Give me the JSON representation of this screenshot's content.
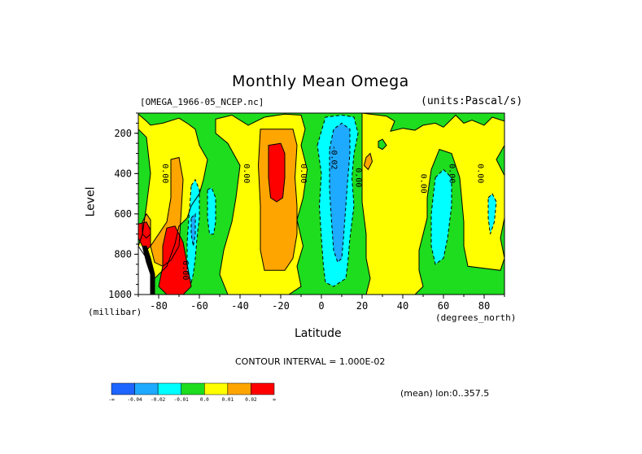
{
  "chart_data": {
    "type": "heatmap",
    "title": "Monthly Mean Omega",
    "file_label": "[OMEGA_1966-05_NCEP.nc]",
    "units_label": "(units:Pascal/s)",
    "xlabel": "Latitude",
    "xunit": "(degrees_north)",
    "ylabel": "Level",
    "yunit": "(millibar)",
    "xlim": [
      -90,
      90
    ],
    "ylim": [
      1000,
      100
    ],
    "x_ticks": [
      "-80",
      "-60",
      "-40",
      "-20",
      "0",
      "20",
      "40",
      "60",
      "80"
    ],
    "x_tick_values": [
      -80,
      -60,
      -40,
      -20,
      0,
      20,
      40,
      60,
      80
    ],
    "y_ticks": [
      "200",
      "400",
      "600",
      "800",
      "1000"
    ],
    "y_tick_values": [
      200,
      400,
      600,
      800,
      1000
    ],
    "contour_interval_label": "CONTOUR INTERVAL = 1.000E-02",
    "mean_label": "(mean) lon:0..357.5",
    "contour_labels": [
      {
        "text": "0.00",
        "lat": -78,
        "lev": 400
      },
      {
        "text": "0.00",
        "lat": -38,
        "lev": 400
      },
      {
        "text": "0.00",
        "lat": -10,
        "lev": 400
      },
      {
        "text": "-0.02",
        "lat": 5,
        "lev": 320
      },
      {
        "text": "0.00",
        "lat": 17,
        "lev": 420
      },
      {
        "text": "0.00",
        "lat": 49,
        "lev": 450
      },
      {
        "text": "0.00",
        "lat": 63,
        "lev": 400
      },
      {
        "text": "0.00",
        "lat": 77,
        "lev": 400
      },
      {
        "text": "0.00",
        "lat": -68,
        "lev": 880
      }
    ],
    "colorbar": {
      "levels": [
        "-∞",
        "-0.04",
        "-0.02",
        "-0.01",
        "0.0",
        "0.01",
        "0.02",
        "∞"
      ],
      "colors": [
        "#1e64ff",
        "#1eaaff",
        "#00ffff",
        "#1edc1e",
        "#ffff00",
        "#ffa500",
        "#ff0000"
      ]
    },
    "regions": [
      {
        "color": "#1edc1e",
        "points": [
          [
            -90,
            100
          ],
          [
            90,
            100
          ],
          [
            90,
            1000
          ],
          [
            -90,
            1000
          ]
        ]
      },
      {
        "color": "#ffff00",
        "points": [
          [
            -90,
            105
          ],
          [
            -86,
            140
          ],
          [
            -84,
            160
          ],
          [
            -78,
            150
          ],
          [
            -70,
            125
          ],
          [
            -66,
            150
          ],
          [
            -62,
            180
          ],
          [
            -60,
            260
          ],
          [
            -56,
            330
          ],
          [
            -58,
            430
          ],
          [
            -60,
            500
          ],
          [
            -64,
            560
          ],
          [
            -66,
            620
          ],
          [
            -70,
            660
          ],
          [
            -72,
            750
          ],
          [
            -76,
            860
          ],
          [
            -82,
            920
          ],
          [
            -86,
            820
          ],
          [
            -90,
            760
          ],
          [
            -88,
            700
          ],
          [
            -86,
            560
          ],
          [
            -84,
            400
          ],
          [
            -86,
            220
          ],
          [
            -90,
            180
          ]
        ]
      },
      {
        "color": "#ffff00",
        "points": [
          [
            -52,
            130
          ],
          [
            -44,
            110
          ],
          [
            -36,
            160
          ],
          [
            -28,
            120
          ],
          [
            -18,
            105
          ],
          [
            -10,
            110
          ],
          [
            -8,
            180
          ],
          [
            -10,
            260
          ],
          [
            -7,
            380
          ],
          [
            -9,
            520
          ],
          [
            -12,
            630
          ],
          [
            -9,
            760
          ],
          [
            -12,
            860
          ],
          [
            -10,
            960
          ],
          [
            -16,
            1000
          ],
          [
            -46,
            1000
          ],
          [
            -50,
            900
          ],
          [
            -48,
            780
          ],
          [
            -44,
            640
          ],
          [
            -42,
            520
          ],
          [
            -40,
            360
          ],
          [
            -46,
            250
          ],
          [
            -52,
            200
          ]
        ]
      },
      {
        "color": "#ffff00",
        "points": [
          [
            20,
            100
          ],
          [
            32,
            115
          ],
          [
            36,
            140
          ],
          [
            34,
            190
          ],
          [
            40,
            175
          ],
          [
            46,
            185
          ],
          [
            50,
            160
          ],
          [
            56,
            150
          ],
          [
            60,
            170
          ],
          [
            66,
            110
          ],
          [
            70,
            150
          ],
          [
            74,
            135
          ],
          [
            80,
            160
          ],
          [
            84,
            120
          ],
          [
            90,
            140
          ],
          [
            90,
            260
          ],
          [
            86,
            330
          ],
          [
            90,
            410
          ],
          [
            90,
            620
          ],
          [
            88,
            720
          ],
          [
            90,
            820
          ],
          [
            88,
            880
          ],
          [
            72,
            860
          ],
          [
            70,
            760
          ],
          [
            70,
            640
          ],
          [
            68,
            420
          ],
          [
            64,
            300
          ],
          [
            58,
            280
          ],
          [
            54,
            380
          ],
          [
            52,
            520
          ],
          [
            52,
            620
          ],
          [
            50,
            700
          ],
          [
            48,
            780
          ],
          [
            48,
            880
          ],
          [
            50,
            960
          ],
          [
            46,
            1000
          ],
          [
            22,
            1000
          ],
          [
            24,
            920
          ],
          [
            22,
            820
          ],
          [
            22,
            700
          ],
          [
            20,
            540
          ],
          [
            20,
            380
          ],
          [
            20,
            220
          ]
        ]
      },
      {
        "color": "#ffa500",
        "points": [
          [
            -74,
            330
          ],
          [
            -70,
            320
          ],
          [
            -68,
            430
          ],
          [
            -69,
            600
          ],
          [
            -70,
            760
          ],
          [
            -74,
            830
          ],
          [
            -78,
            860
          ],
          [
            -82,
            840
          ],
          [
            -84,
            760
          ],
          [
            -80,
            700
          ],
          [
            -76,
            640
          ],
          [
            -74,
            520
          ]
        ]
      },
      {
        "color": "#ffa500",
        "points": [
          [
            -30,
            180
          ],
          [
            -14,
            180
          ],
          [
            -12,
            260
          ],
          [
            -13,
            420
          ],
          [
            -12,
            560
          ],
          [
            -12,
            700
          ],
          [
            -14,
            820
          ],
          [
            -18,
            880
          ],
          [
            -28,
            880
          ],
          [
            -30,
            780
          ],
          [
            -30,
            560
          ],
          [
            -31,
            360
          ]
        ]
      },
      {
        "color": "#ffa500",
        "points": [
          [
            22,
            320
          ],
          [
            24,
            300
          ],
          [
            25,
            340
          ],
          [
            23,
            380
          ],
          [
            21,
            360
          ]
        ]
      },
      {
        "color": "#ffa500",
        "points": [
          [
            -88,
            640
          ],
          [
            -86,
            600
          ],
          [
            -84,
            630
          ],
          [
            -84,
            700
          ],
          [
            -86,
            720
          ],
          [
            -88,
            700
          ]
        ]
      },
      {
        "color": "#ff0000",
        "points": [
          [
            -26,
            260
          ],
          [
            -20,
            250
          ],
          [
            -18,
            300
          ],
          [
            -18,
            420
          ],
          [
            -19,
            520
          ],
          [
            -22,
            540
          ],
          [
            -25,
            520
          ],
          [
            -26,
            420
          ]
        ]
      },
      {
        "color": "#ff0000",
        "points": [
          [
            -76,
            670
          ],
          [
            -72,
            660
          ],
          [
            -68,
            740
          ],
          [
            -66,
            850
          ],
          [
            -64,
            960
          ],
          [
            -68,
            1000
          ],
          [
            -76,
            1000
          ],
          [
            -80,
            960
          ],
          [
            -78,
            860
          ],
          [
            -78,
            760
          ]
        ]
      },
      {
        "color": "#ff0000",
        "points": [
          [
            -90,
            650
          ],
          [
            -86,
            640
          ],
          [
            -84,
            680
          ],
          [
            -84,
            760
          ],
          [
            -86,
            780
          ],
          [
            -88,
            760
          ],
          [
            -90,
            720
          ]
        ]
      },
      {
        "color": "#00ffff",
        "points": [
          [
            -64,
            460
          ],
          [
            -62,
            430
          ],
          [
            -60,
            480
          ],
          [
            -60,
            620
          ],
          [
            -61,
            700
          ],
          [
            -62,
            820
          ],
          [
            -63,
            900
          ],
          [
            -64,
            940
          ],
          [
            -66,
            880
          ],
          [
            -66,
            740
          ],
          [
            -65,
            600
          ]
        ]
      },
      {
        "color": "#00ffff",
        "points": [
          [
            -56,
            480
          ],
          [
            -54,
            470
          ],
          [
            -52,
            520
          ],
          [
            -52,
            640
          ],
          [
            -53,
            700
          ],
          [
            -55,
            700
          ],
          [
            -56,
            620
          ]
        ]
      },
      {
        "color": "#00ffff",
        "points": [
          [
            -2,
            260
          ],
          [
            2,
            120
          ],
          [
            10,
            110
          ],
          [
            16,
            120
          ],
          [
            18,
            200
          ],
          [
            16,
            300
          ],
          [
            15,
            420
          ],
          [
            16,
            560
          ],
          [
            14,
            720
          ],
          [
            13,
            840
          ],
          [
            12,
            920
          ],
          [
            6,
            960
          ],
          [
            2,
            940
          ],
          [
            1,
            860
          ],
          [
            0,
            720
          ],
          [
            -1,
            560
          ],
          [
            0,
            400
          ]
        ]
      },
      {
        "color": "#00ffff",
        "points": [
          [
            56,
            420
          ],
          [
            60,
            380
          ],
          [
            64,
            420
          ],
          [
            64,
            560
          ],
          [
            62,
            720
          ],
          [
            60,
            820
          ],
          [
            56,
            850
          ],
          [
            54,
            760
          ],
          [
            54,
            600
          ]
        ]
      },
      {
        "color": "#00ffff",
        "points": [
          [
            82,
            520
          ],
          [
            84,
            500
          ],
          [
            86,
            540
          ],
          [
            85,
            640
          ],
          [
            83,
            700
          ],
          [
            82,
            620
          ]
        ]
      },
      {
        "color": "#1eaaff",
        "points": [
          [
            4,
            280
          ],
          [
            6,
            180
          ],
          [
            10,
            150
          ],
          [
            14,
            180
          ],
          [
            14,
            300
          ],
          [
            13,
            420
          ],
          [
            12,
            560
          ],
          [
            11,
            700
          ],
          [
            10,
            820
          ],
          [
            8,
            840
          ],
          [
            6,
            780
          ],
          [
            5,
            640
          ],
          [
            4,
            480
          ]
        ]
      },
      {
        "color": "#1eaaff",
        "points": [
          [
            -64,
            620
          ],
          [
            -62,
            600
          ],
          [
            -62,
            700
          ],
          [
            -63,
            760
          ],
          [
            -64,
            700
          ]
        ]
      },
      {
        "color": "#1edc1e",
        "points": [
          [
            28,
            240
          ],
          [
            30,
            230
          ],
          [
            32,
            260
          ],
          [
            30,
            280
          ],
          [
            28,
            270
          ]
        ]
      },
      {
        "color": "#ffffff",
        "points": [
          [
            -90,
            760
          ],
          [
            -88,
            760
          ],
          [
            -86,
            820
          ],
          [
            -84,
            880
          ],
          [
            -84,
            1000
          ],
          [
            -90,
            1000
          ]
        ]
      },
      {
        "color": "#000000",
        "points": [
          [
            -88,
            760
          ],
          [
            -86,
            760
          ],
          [
            -84,
            820
          ],
          [
            -82,
            900
          ],
          [
            -82,
            1000
          ],
          [
            -84,
            1000
          ],
          [
            -84,
            900
          ],
          [
            -86,
            840
          ]
        ]
      }
    ]
  }
}
